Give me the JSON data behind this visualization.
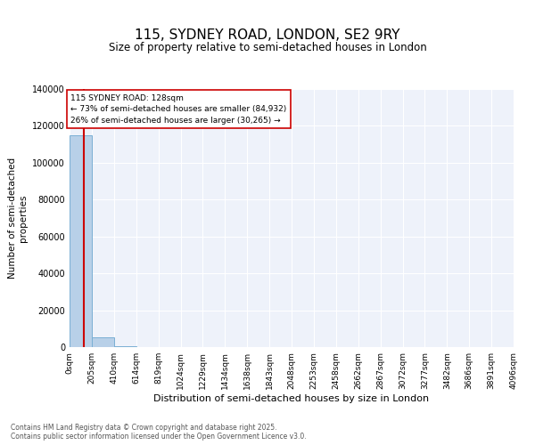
{
  "title": "115, SYDNEY ROAD, LONDON, SE2 9RY",
  "subtitle": "Size of property relative to semi-detached houses in London",
  "xlabel": "Distribution of semi-detached houses by size in London",
  "ylabel": "Number of semi-detached\nproperties",
  "property_size": 128,
  "annotation_line1": "115 SYDNEY ROAD: 128sqm",
  "annotation_line2": "← 73% of semi-detached houses are smaller (84,932)",
  "annotation_line3": "26% of semi-detached houses are larger (30,265) →",
  "bar_color": "#b8d0e8",
  "bar_edge_color": "#7aafd4",
  "line_color": "#cc0000",
  "annotation_box_color": "#cc0000",
  "background_color": "#eef2fa",
  "footer_text": "Contains HM Land Registry data © Crown copyright and database right 2025.\nContains public sector information licensed under the Open Government Licence v3.0.",
  "bin_edges": [
    0,
    205,
    410,
    614,
    819,
    1024,
    1229,
    1434,
    1638,
    1843,
    2048,
    2253,
    2458,
    2662,
    2867,
    3072,
    3277,
    3482,
    3686,
    3891,
    4096
  ],
  "bin_labels": [
    "0sqm",
    "205sqm",
    "410sqm",
    "614sqm",
    "819sqm",
    "1024sqm",
    "1229sqm",
    "1434sqm",
    "1638sqm",
    "1843sqm",
    "2048sqm",
    "2253sqm",
    "2458sqm",
    "2662sqm",
    "2867sqm",
    "3072sqm",
    "3277sqm",
    "3482sqm",
    "3686sqm",
    "3891sqm",
    "4096sqm"
  ],
  "bar_heights": [
    115000,
    5500,
    300,
    150,
    80,
    50,
    30,
    20,
    15,
    10,
    8,
    6,
    5,
    4,
    3,
    2,
    2,
    1,
    1,
    1
  ],
  "ylim": [
    0,
    140000
  ],
  "yticks": [
    0,
    20000,
    40000,
    60000,
    80000,
    100000,
    120000,
    140000
  ],
  "ytick_labels": [
    "0",
    "20000",
    "40000",
    "60000",
    "80000",
    "100000",
    "120000",
    "140000"
  ]
}
